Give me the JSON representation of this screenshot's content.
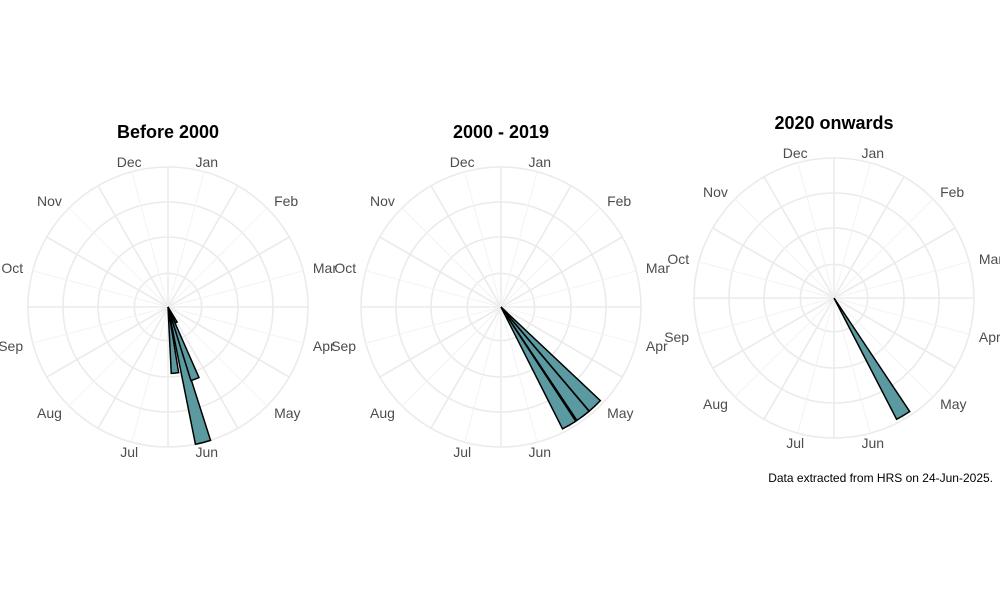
{
  "caption": "Data extracted from HRS on 24-Jun-2025.",
  "months": [
    "Jan",
    "Feb",
    "Mar",
    "Apr",
    "May",
    "Jun",
    "Jul",
    "Aug",
    "Sep",
    "Oct",
    "Nov",
    "Dec"
  ],
  "colors": {
    "bar_fill": "#5b9aa0",
    "bar_outline": "#000000",
    "grid": "#ebebeb",
    "label": "#4d4d4d"
  },
  "chart_data": [
    {
      "type": "bar",
      "coord": "polar",
      "title": "Before 2000",
      "rlim": [
        0,
        4
      ],
      "bars": [
        {
          "month": "Jun",
          "angle_deg": 165.5,
          "value": 4.0
        },
        {
          "month": "Jun",
          "angle_deg": 159.5,
          "value": 2.2
        },
        {
          "month": "Jun",
          "angle_deg": 152.0,
          "value": 0.5
        },
        {
          "month": "Jul",
          "angle_deg": 174.0,
          "value": 1.9
        }
      ]
    },
    {
      "type": "bar",
      "coord": "polar",
      "title": "2000 - 2019",
      "rlim": [
        0,
        4
      ],
      "bars": [
        {
          "month": "Jun",
          "angle_deg": 150.0,
          "value": 3.9
        },
        {
          "month": "Jun",
          "angle_deg": 143.0,
          "value": 3.9
        },
        {
          "month": "May",
          "angle_deg": 136.5,
          "value": 3.9
        }
      ]
    },
    {
      "type": "bar",
      "coord": "polar",
      "title": "2020 onwards",
      "rlim": [
        0,
        4
      ],
      "bars": [
        {
          "month": "Jun",
          "angle_deg": 149.5,
          "value": 3.9
        }
      ]
    }
  ]
}
